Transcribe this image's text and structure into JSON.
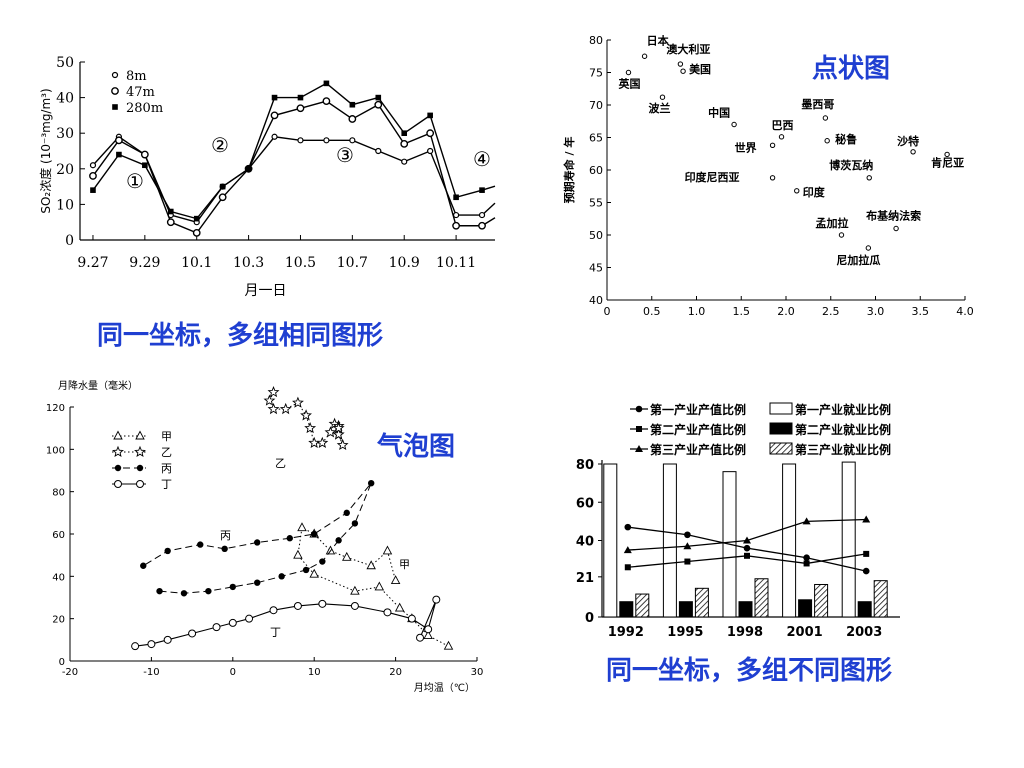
{
  "captions": {
    "same_axes_same_shape": "同一坐标，多组相同图形",
    "scatter": "点状图",
    "bubble": "气泡图",
    "same_axes_diff_shape": "同一坐标，多组不同图形"
  },
  "chart_data": [
    {
      "id": "so2",
      "type": "line",
      "ylabel": "SO₂浓度 (10⁻³mg/m³)",
      "xlabel": "月一日",
      "x_tick_labels": [
        "9.27",
        "9.29",
        "10.1",
        "10.3",
        "10.5",
        "10.7",
        "10.9",
        "10.11"
      ],
      "x_range": [
        0,
        16
      ],
      "ylim": [
        0,
        50
      ],
      "y_ticks": [
        0,
        10,
        20,
        30,
        40,
        50
      ],
      "region_labels": [
        "①",
        "②",
        "③",
        "④"
      ],
      "series": [
        {
          "name": "8m",
          "marker": "open-small",
          "x": [
            0,
            1,
            2,
            3,
            4,
            5,
            6,
            7,
            8,
            9,
            10,
            11,
            12,
            13,
            14,
            15,
            16
          ],
          "y": [
            21,
            29,
            24,
            7,
            5,
            15,
            20,
            29,
            28,
            28,
            28,
            25,
            22,
            25,
            7,
            7,
            null
          ]
        },
        {
          "name": "47m",
          "marker": "open",
          "x": [
            0,
            1,
            2,
            3,
            4,
            5,
            6,
            7,
            8,
            9,
            10,
            11,
            12,
            13,
            14,
            15,
            16
          ],
          "y": [
            18,
            28,
            24,
            5,
            2,
            12,
            20,
            35,
            37,
            39,
            34,
            38,
            27,
            30,
            4,
            4,
            null
          ]
        },
        {
          "name": "280m",
          "marker": "filled-square",
          "x": [
            0,
            1,
            2,
            3,
            4,
            5,
            6,
            7,
            8,
            9,
            10,
            11,
            12,
            13,
            14,
            15,
            16
          ],
          "y": [
            14,
            24,
            21,
            8,
            6,
            15,
            20,
            40,
            40,
            44,
            38,
            40,
            30,
            35,
            12,
            14,
            null
          ]
        }
      ]
    },
    {
      "id": "life",
      "type": "scatter",
      "ylabel": "预期寿命 / 年",
      "xlim": [
        0,
        4.0
      ],
      "ylim": [
        40,
        80
      ],
      "x_ticks": [
        "0",
        "0.5",
        "1.0",
        "1.5",
        "2.0",
        "2.5",
        "3.0",
        "3.5",
        "4.0"
      ],
      "y_ticks": [
        40,
        45,
        50,
        55,
        60,
        65,
        70,
        75,
        80
      ],
      "points": [
        {
          "label": "日本",
          "x": 0.42,
          "y": 77.5
        },
        {
          "label": "澳大利亚",
          "x": 0.82,
          "y": 76.3
        },
        {
          "label": "英国",
          "x": 0.24,
          "y": 75.0
        },
        {
          "label": "美国",
          "x": 0.85,
          "y": 75.2
        },
        {
          "label": "波兰",
          "x": 0.62,
          "y": 71.2
        },
        {
          "label": "中国",
          "x": 1.42,
          "y": 67.0
        },
        {
          "label": "墨西哥",
          "x": 2.44,
          "y": 68.0
        },
        {
          "label": "巴西",
          "x": 1.95,
          "y": 65.1
        },
        {
          "label": "世界",
          "x": 1.85,
          "y": 63.8
        },
        {
          "label": "秘鲁",
          "x": 2.46,
          "y": 64.5
        },
        {
          "label": "沙特",
          "x": 3.42,
          "y": 62.8
        },
        {
          "label": "肯尼亚",
          "x": 3.8,
          "y": 62.4
        },
        {
          "label": "印度尼西亚",
          "x": 1.85,
          "y": 58.8
        },
        {
          "label": "博茨瓦纳",
          "x": 2.93,
          "y": 58.8
        },
        {
          "label": "印度",
          "x": 2.12,
          "y": 56.8
        },
        {
          "label": "孟加拉",
          "x": 2.62,
          "y": 50.0
        },
        {
          "label": "布基纳法索",
          "x": 3.23,
          "y": 51.0
        },
        {
          "label": "尼加拉瓜",
          "x": 2.92,
          "y": 48.0
        }
      ]
    },
    {
      "id": "climate",
      "type": "line",
      "ylabel": "月降水量（毫米）",
      "xlabel": "月均温（℃）",
      "xlim": [
        -20,
        30
      ],
      "ylim": [
        0,
        120
      ],
      "x_ticks": [
        -20,
        -10,
        0,
        10,
        20,
        30
      ],
      "y_ticks": [
        0,
        20,
        40,
        60,
        80,
        100,
        120
      ],
      "series": [
        {
          "name": "甲",
          "marker": "open-triangle",
          "style": "dotted",
          "x": [
            26.5,
            24,
            22,
            20.5,
            18,
            15,
            10,
            8,
            8.5,
            10,
            12,
            14,
            17,
            19,
            20
          ],
          "y": [
            7,
            12,
            20,
            25,
            35,
            33,
            41,
            50,
            63,
            60,
            52,
            49,
            45,
            52,
            38
          ]
        },
        {
          "name": "乙",
          "marker": "star",
          "style": "dotted",
          "x": [
            5,
            4.5,
            5,
            6.5,
            8,
            9,
            9.5,
            10,
            11,
            12,
            13,
            13.5,
            13,
            12.5,
            13,
            13
          ],
          "y": [
            127,
            123,
            119,
            119,
            122,
            116,
            110,
            103,
            103,
            108,
            107,
            102,
            107,
            112,
            111,
            110
          ]
        },
        {
          "name": "丙",
          "marker": "filled-circle",
          "style": "dashed",
          "x": [
            -9,
            -6,
            -3,
            0,
            3,
            6,
            9,
            11,
            13,
            15,
            17,
            14,
            10,
            7,
            3,
            -1,
            -4,
            -8,
            -11
          ],
          "y": [
            33,
            32,
            33,
            35,
            37,
            40,
            43,
            47,
            57,
            65,
            84,
            70,
            60,
            58,
            56,
            53,
            55,
            52,
            45
          ]
        },
        {
          "name": "丁",
          "marker": "open-circle",
          "style": "solid",
          "x": [
            -12,
            -10,
            -8,
            -5,
            -2,
            0,
            2,
            5,
            8,
            11,
            15,
            19,
            22,
            24,
            25,
            23
          ],
          "y": [
            7,
            8,
            10,
            13,
            16,
            18,
            20,
            24,
            26,
            27,
            26,
            23,
            20,
            15,
            29,
            11
          ]
        }
      ],
      "series_labels": [
        "甲",
        "乙",
        "丙",
        "丁"
      ]
    },
    {
      "id": "industry",
      "type": "bar",
      "categories": [
        "1992",
        "1995",
        "1998",
        "2001",
        "2003"
      ],
      "ylim": [
        0,
        80
      ],
      "y_ticks": [
        0,
        21,
        40,
        60,
        80
      ],
      "legend": [
        "第一产业产值比例",
        "第一产业就业比例",
        "第二产业产值比例",
        "第二产业就业比例",
        "第三产业产值比例",
        "第三产业就业比例"
      ],
      "bar_series": [
        {
          "name": "第一产业就业比例",
          "fill": "white",
          "values": [
            80,
            80,
            76,
            80,
            81
          ]
        },
        {
          "name": "第二产业就业比例",
          "fill": "black",
          "values": [
            8,
            8,
            8,
            9,
            8
          ]
        },
        {
          "name": "第三产业就业比例",
          "fill": "hatch",
          "values": [
            12,
            15,
            20,
            17,
            19
          ]
        }
      ],
      "line_series": [
        {
          "name": "第一产业产值比例",
          "marker": "circle",
          "values": [
            47,
            43,
            36,
            31,
            24
          ]
        },
        {
          "name": "第二产业产值比例",
          "marker": "square",
          "values": [
            26,
            29,
            32,
            28,
            33
          ]
        },
        {
          "name": "第三产业产值比例",
          "marker": "triangle",
          "values": [
            35,
            37,
            40,
            50,
            51
          ]
        }
      ]
    }
  ]
}
